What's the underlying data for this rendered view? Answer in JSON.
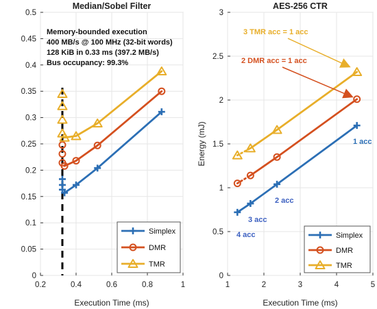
{
  "colors": {
    "simplex": "#2c6fb5",
    "dmr": "#d4501f",
    "tmr": "#e8ae2a",
    "simplex_label": "#3b5fc0",
    "tmr_label": "#e8ae2a",
    "dmr_label": "#d4501f",
    "dashed_line": "#000000"
  },
  "chart_data": [
    {
      "type": "line",
      "title": "Median/Sobel Filter",
      "xlabel": "Execution Time (ms)",
      "ylabel": "",
      "xlim": [
        0.2,
        1.0
      ],
      "ylim": [
        0,
        0.5
      ],
      "xticks": [
        "0.2",
        "0.4",
        "0.6",
        "0.8",
        "1"
      ],
      "yticks": [
        "0",
        "0.05",
        "0.1",
        "0.15",
        "0.2",
        "0.25",
        "0.3",
        "0.35",
        "0.4",
        "0.45",
        "0.5"
      ],
      "annotations": [
        "Memory-bounded execution",
        "400 MB/s @ 100 MHz (32-bit words)",
        "128 KiB in 0.33 ms (397.2 MB/s)",
        "Bus occupancy: 99.3%"
      ],
      "vertical_line_x": 0.323,
      "series": [
        {
          "name": "Simplex",
          "dense_x": [
            0.323,
            0.323,
            0.323
          ],
          "dense_y": [
            0.183,
            0.172,
            0.163
          ],
          "x": [
            0.335,
            0.4,
            0.52,
            0.88
          ],
          "y": [
            0.157,
            0.172,
            0.204,
            0.311
          ]
        },
        {
          "name": "DMR",
          "dense_x": [
            0.323,
            0.323,
            0.323
          ],
          "dense_y": [
            0.248,
            0.231,
            0.214
          ],
          "x": [
            0.335,
            0.4,
            0.52,
            0.88
          ],
          "y": [
            0.208,
            0.218,
            0.247,
            0.35
          ]
        },
        {
          "name": "TMR",
          "dense_x": [
            0.323,
            0.323,
            0.323,
            0.323
          ],
          "dense_y": [
            0.345,
            0.322,
            0.296,
            0.27
          ],
          "x": [
            0.335,
            0.4,
            0.52,
            0.88
          ],
          "y": [
            0.262,
            0.265,
            0.289,
            0.388
          ]
        }
      ],
      "legend": [
        "Simplex",
        "DMR",
        "TMR"
      ],
      "legend_position": "bottom-right",
      "grid": true
    },
    {
      "type": "line",
      "title": "AES-256 CTR",
      "xlabel": "Execution Time (ms)",
      "ylabel": "Energy (mJ)",
      "xlim": [
        1,
        5
      ],
      "ylim": [
        0,
        3
      ],
      "xticks": [
        "1",
        "2",
        "3",
        "4",
        "5"
      ],
      "yticks": [
        "0",
        "0.5",
        "1",
        "1.5",
        "2",
        "2.5",
        "3"
      ],
      "series": [
        {
          "name": "Simplex",
          "x": [
            1.27,
            1.63,
            2.36,
            4.56
          ],
          "y": [
            0.72,
            0.82,
            1.04,
            1.71
          ]
        },
        {
          "name": "DMR",
          "x": [
            1.27,
            1.63,
            2.36,
            4.56
          ],
          "y": [
            1.05,
            1.14,
            1.35,
            2.01
          ]
        },
        {
          "name": "TMR",
          "x": [
            1.27,
            1.63,
            2.36,
            4.56
          ],
          "y": [
            1.37,
            1.45,
            1.66,
            2.32
          ]
        }
      ],
      "dotted_segments_note": "first segment of DMR and TMR dotted",
      "annotations": {
        "tmr_acc": "3 TMR acc = 1 acc",
        "dmr_acc": "2 DMR acc = 1 acc",
        "acc1": "1 acc",
        "acc2": "2 acc",
        "acc3": "3 acc",
        "acc4": "4 acc"
      },
      "legend": [
        "Simplex",
        "DMR",
        "TMR"
      ],
      "legend_position": "bottom-right",
      "grid": true
    }
  ]
}
